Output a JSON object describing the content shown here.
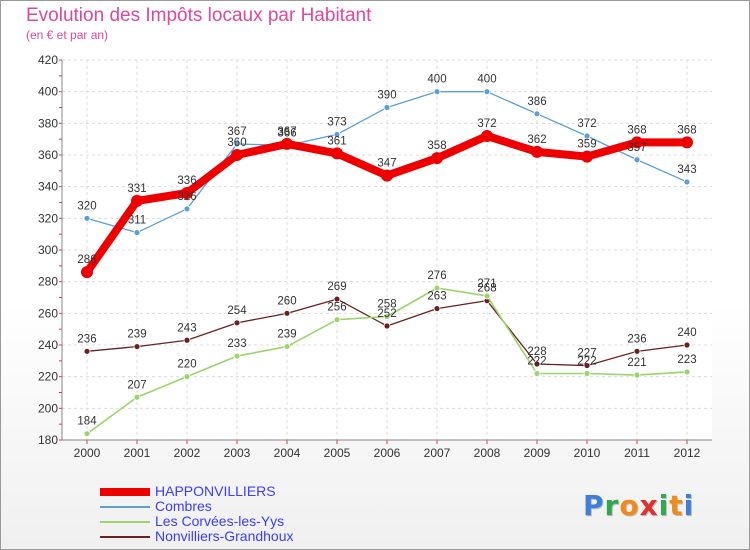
{
  "title": "Evolution des Impôts locaux par Habitant",
  "subtitle": "(en € et par an)",
  "logo": {
    "text": "Proxiti",
    "letters": [
      "P",
      "r",
      "o",
      "x",
      "i",
      "t",
      "i"
    ],
    "colors": [
      "#3f7fd8",
      "#2fa84f",
      "#f08a1c",
      "#e03131",
      "#2fa84f",
      "#f08a1c",
      "#3f7fd8"
    ]
  },
  "chart_data": {
    "type": "line",
    "categories": [
      "2000",
      "2001",
      "2002",
      "2003",
      "2004",
      "2005",
      "2006",
      "2007",
      "2008",
      "2009",
      "2010",
      "2011",
      "2012"
    ],
    "ylim": [
      180,
      420
    ],
    "yticks": [
      180,
      200,
      220,
      240,
      260,
      280,
      300,
      320,
      340,
      360,
      380,
      400,
      420
    ],
    "grid": true,
    "legend_position": "bottom-left",
    "series": [
      {
        "name": "HAPPONVILLIERS",
        "color": "#ee0000",
        "width": 8,
        "marker": 6,
        "values": [
          286,
          331,
          336,
          360,
          367,
          361,
          347,
          358,
          372,
          362,
          359,
          368,
          368
        ],
        "labels": [
          "286",
          "331",
          "336",
          "360",
          "367",
          "361",
          "347",
          "358",
          "372",
          "362",
          "359",
          "368",
          "368"
        ]
      },
      {
        "name": "Combres",
        "color": "#5b9fd6",
        "width": 1.3,
        "marker": 3,
        "values": [
          320,
          311,
          326,
          367,
          366,
          373,
          390,
          400,
          400,
          386,
          372,
          357,
          343
        ],
        "labels": [
          "320",
          "311",
          "326",
          "367",
          "366",
          "373",
          "390",
          "400",
          "400",
          "386",
          "372",
          "357",
          "343"
        ]
      },
      {
        "name": "Les Corvées-les-Yys",
        "color": "#9ad46a",
        "width": 1.6,
        "marker": 3,
        "values": [
          184,
          207,
          220,
          233,
          239,
          256,
          258,
          276,
          271,
          222,
          222,
          221,
          223
        ],
        "labels": [
          "184",
          "207",
          "220",
          "233",
          "239",
          "256",
          "258",
          "276",
          "271",
          "222",
          "222",
          "221",
          "223"
        ]
      },
      {
        "name": "Nonvilliers-Grandhoux",
        "color": "#6b2020",
        "width": 1.3,
        "marker": 3,
        "values": [
          236,
          239,
          243,
          254,
          260,
          269,
          252,
          263,
          268,
          228,
          227,
          236,
          240
        ],
        "labels": [
          "236",
          "239",
          "243",
          "254",
          "260",
          "269",
          "252",
          "263",
          "268",
          "228",
          "227",
          "236",
          "240"
        ]
      }
    ]
  }
}
